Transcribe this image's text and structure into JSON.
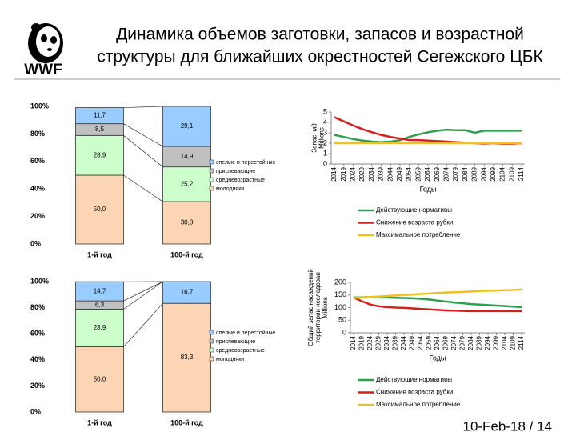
{
  "title": [
    "Динамика объемов заготовки, запасов и возрастной",
    "структуры для ближайших окрестностей Сегежского ЦБК"
  ],
  "logo_text": "WWF",
  "footer": "10-Feb-18 / 14",
  "chart_data": [
    {
      "type": "bar",
      "stacked": true,
      "categories": [
        "1-й год",
        "100-й год"
      ],
      "ylim": [
        0,
        100
      ],
      "yticks": [
        {
          "value": 0,
          "label": "0%"
        },
        {
          "value": 20,
          "label": "20%"
        },
        {
          "value": 40,
          "label": "40%"
        },
        {
          "value": 60,
          "label": "60%"
        },
        {
          "value": 80,
          "label": "80%"
        },
        {
          "value": 100,
          "label": "100%"
        }
      ],
      "series": [
        {
          "name": "молодняки",
          "color": "#fcd5b5",
          "values": [
            50.0,
            30.8
          ],
          "value_labels": [
            "50,0",
            "30,8"
          ]
        },
        {
          "name": "средневозрастные",
          "color": "#ccffcc",
          "values": [
            28.9,
            25.2
          ],
          "value_labels": [
            "28,9",
            "25,2"
          ]
        },
        {
          "name": "приспевающие",
          "color": "#c0c0c0",
          "values": [
            8.5,
            14.9
          ],
          "value_labels": [
            "8,5",
            "14,9"
          ]
        },
        {
          "name": "спелые и перестойные",
          "color": "#99ccff",
          "values": [
            11.7,
            29.1
          ],
          "value_labels": [
            "11,7",
            "29,1"
          ]
        }
      ]
    },
    {
      "type": "bar",
      "stacked": true,
      "categories": [
        "1-й год",
        "100-й год"
      ],
      "ylim": [
        0,
        100
      ],
      "yticks": [
        {
          "value": 0,
          "label": "0%"
        },
        {
          "value": 20,
          "label": "20%"
        },
        {
          "value": 40,
          "label": "40%"
        },
        {
          "value": 60,
          "label": "60%"
        },
        {
          "value": 80,
          "label": "80%"
        },
        {
          "value": 100,
          "label": "100%"
        }
      ],
      "series": [
        {
          "name": "молодняки",
          "color": "#fcd5b5",
          "values": [
            50.0,
            83.3
          ],
          "value_labels": [
            "50,0",
            "83,3"
          ]
        },
        {
          "name": "средневозрастные",
          "color": "#ccffcc",
          "values": [
            28.9,
            null
          ],
          "value_labels": [
            "28,9",
            null
          ]
        },
        {
          "name": "приспевающие",
          "color": "#c0c0c0",
          "values": [
            6.3,
            null
          ],
          "value_labels": [
            "6,3",
            null
          ]
        },
        {
          "name": "спелые и перестойные",
          "color": "#99ccff",
          "values": [
            14.7,
            16.7
          ],
          "value_labels": [
            "14,7",
            "16,7"
          ]
        }
      ]
    },
    {
      "type": "line",
      "ylabel": [
        "Запас, м3",
        "Millions"
      ],
      "xlabel": "Годы",
      "x": [
        2014,
        2019,
        2024,
        2029,
        2034,
        2039,
        2044,
        2049,
        2054,
        2059,
        2064,
        2069,
        2074,
        2079,
        2084,
        2089,
        2094,
        2099,
        2104,
        2109,
        2114
      ],
      "xlim": [
        2014,
        2114
      ],
      "xticks": [
        2014,
        2019,
        2024,
        2029,
        2034,
        2039,
        2044,
        2049,
        2054,
        2059,
        2064,
        2069,
        2074,
        2079,
        2084,
        2089,
        2094,
        2099,
        2104,
        2109,
        2114
      ],
      "ylim": [
        0,
        5
      ],
      "yticks": [
        0,
        1,
        2,
        3,
        4,
        5
      ],
      "series": [
        {
          "name": "Действующие нормативы",
          "color": "#2e9e4f",
          "values": [
            2.8,
            2.6,
            2.4,
            2.25,
            2.15,
            2.1,
            2.15,
            2.3,
            2.6,
            2.85,
            3.05,
            3.2,
            3.3,
            3.25,
            3.25,
            3.0,
            3.2,
            3.2,
            3.2,
            3.2,
            3.2
          ]
        },
        {
          "name": "Снижение возраста рубки",
          "color": "#d02020",
          "values": [
            4.5,
            4.1,
            3.7,
            3.35,
            3.05,
            2.8,
            2.6,
            2.45,
            2.3,
            2.3,
            2.25,
            2.2,
            2.15,
            2.1,
            2.05,
            2.0,
            1.95,
            2.0,
            1.95,
            1.95,
            2.0
          ]
        },
        {
          "name": "Максимальное потребление",
          "color": "#f0c020",
          "values": [
            2.0,
            2.0,
            2.0,
            2.0,
            2.0,
            2.0,
            2.0,
            2.0,
            2.0,
            2.0,
            2.0,
            2.0,
            2.0,
            2.0,
            2.0,
            2.0,
            2.0,
            2.0,
            2.0,
            2.0,
            2.0
          ]
        }
      ]
    },
    {
      "type": "line",
      "ylabel": [
        "Общий запас насаждений",
        "территории исследован",
        "Millions"
      ],
      "xlabel": "Годы",
      "x": [
        2014,
        2019,
        2024,
        2029,
        2034,
        2039,
        2044,
        2049,
        2054,
        2059,
        2064,
        2069,
        2074,
        2079,
        2084,
        2089,
        2094,
        2099,
        2104,
        2109,
        2114
      ],
      "xlim": [
        2014,
        2114
      ],
      "xticks": [
        2014,
        2019,
        2024,
        2029,
        2034,
        2039,
        2044,
        2049,
        2054,
        2059,
        2064,
        2069,
        2074,
        2079,
        2084,
        2089,
        2094,
        2099,
        2104,
        2109,
        2114
      ],
      "ylim": [
        0,
        200
      ],
      "yticks": [
        0,
        50,
        100,
        150,
        200
      ],
      "series": [
        {
          "name": "Действующие нормативы",
          "color": "#2e9e4f",
          "values": [
            140,
            141,
            142,
            141,
            140,
            139,
            138,
            137,
            135,
            132,
            128,
            124,
            120,
            117,
            114,
            112,
            110,
            108,
            106,
            104,
            102
          ]
        },
        {
          "name": "Снижение возраста рубки",
          "color": "#d02020",
          "values": [
            140,
            125,
            112,
            105,
            102,
            100,
            99,
            97,
            95,
            93,
            91,
            89,
            88,
            87,
            86,
            86,
            86,
            86,
            86,
            86,
            86
          ]
        },
        {
          "name": "Максимальное потребление",
          "color": "#f0c020",
          "values": [
            138,
            140,
            142,
            144,
            146,
            148,
            150,
            152,
            154,
            156,
            158,
            160,
            161,
            162,
            164,
            166,
            167,
            168,
            169,
            170,
            172
          ]
        }
      ]
    }
  ]
}
